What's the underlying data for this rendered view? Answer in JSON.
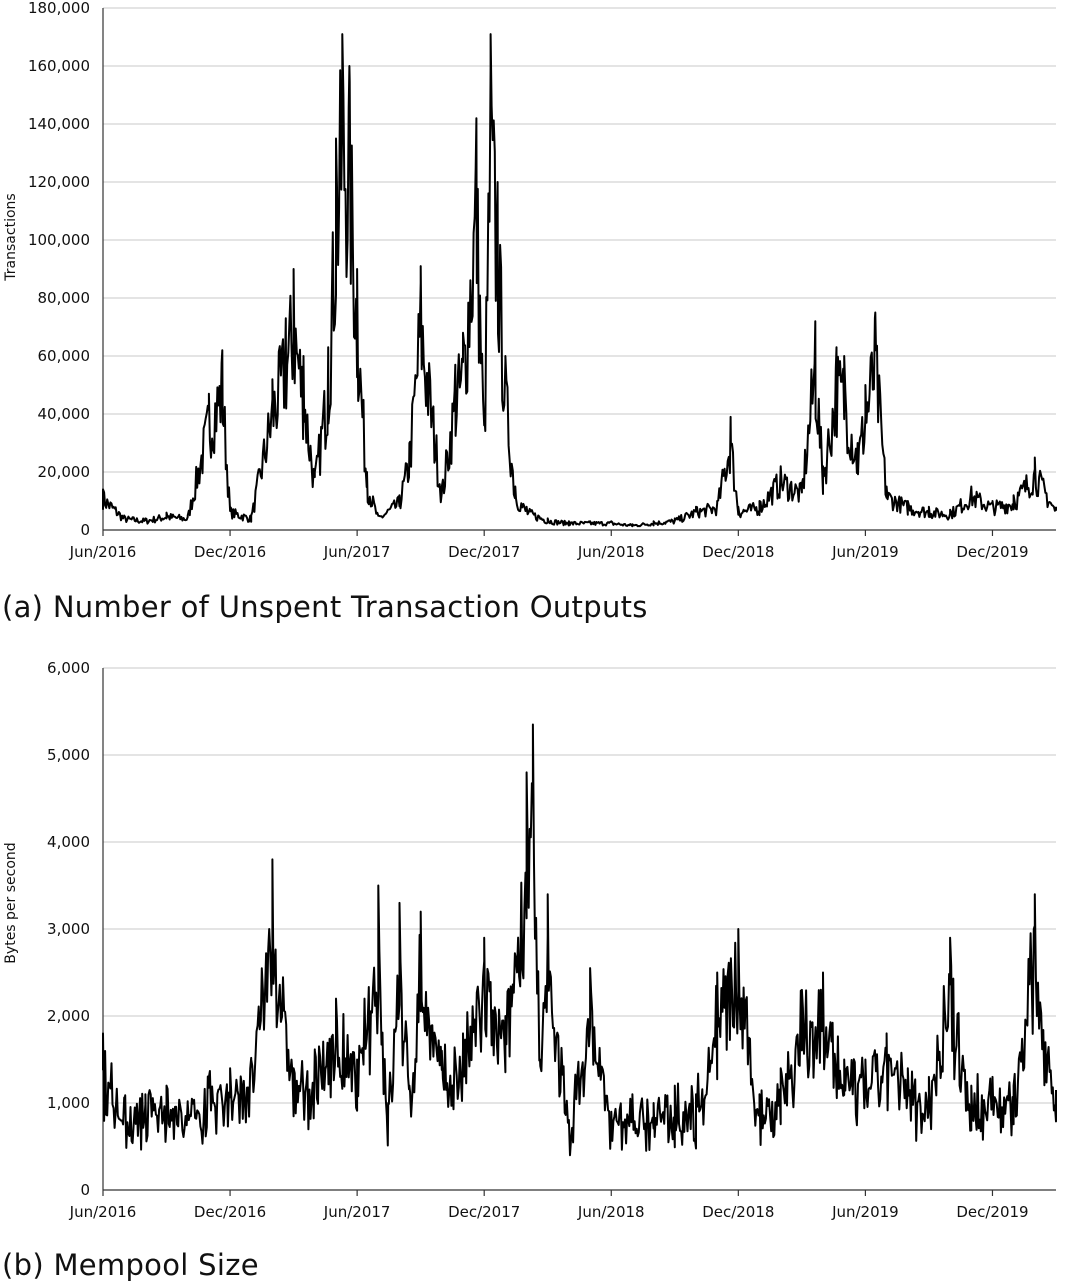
{
  "chart_data": [
    {
      "type": "line",
      "caption": "(a) Number of Unspent Transaction Outputs",
      "ylabel": "Transactions",
      "ylim": [
        0,
        180000
      ],
      "yticks": [
        0,
        20000,
        40000,
        60000,
        80000,
        100000,
        120000,
        140000,
        160000,
        180000
      ],
      "ytick_labels": [
        "0",
        "20,000",
        "40,000",
        "60,000",
        "80,000",
        "100,000",
        "120,000",
        "140,000",
        "160,000",
        "180,000"
      ],
      "xlim": [
        "2016-06",
        "2020-03"
      ],
      "xticks": [
        "2016-06",
        "2016-12",
        "2017-06",
        "2017-12",
        "2018-06",
        "2018-12",
        "2019-06",
        "2019-12"
      ],
      "xtick_labels": [
        "Jun/2016",
        "Dec/2016",
        "Jun/2017",
        "Dec/2017",
        "Jun/2018",
        "Dec/2018",
        "Jun/2019",
        "Dec/2019"
      ],
      "grid": true,
      "series": [
        {
          "x": [
            "2016-06",
            "2016-07",
            "2016-08",
            "2016-09",
            "2016-10",
            "2016-11",
            "2016-11-20",
            "2016-12",
            "2017-01",
            "2017-02",
            "2017-02-20",
            "2017-03",
            "2017-03-15",
            "2017-04",
            "2017-04-20",
            "2017-05",
            "2017-05-10",
            "2017-05-20",
            "2017-06",
            "2017-06-15",
            "2017-07",
            "2017-08",
            "2017-08-15",
            "2017-09",
            "2017-10",
            "2017-10-20",
            "2017-11",
            "2017-11-20",
            "2017-12",
            "2017-12-10",
            "2017-12-20",
            "2018-01",
            "2018-01-15",
            "2018-02",
            "2018-03",
            "2018-04",
            "2018-05",
            "2018-06",
            "2018-07",
            "2018-08",
            "2018-09",
            "2018-10",
            "2018-11",
            "2018-11-20",
            "2018-12",
            "2019-01",
            "2019-02",
            "2019-03",
            "2019-03-20",
            "2019-04",
            "2019-04-20",
            "2019-05",
            "2019-05-20",
            "2019-06",
            "2019-06-15",
            "2019-07",
            "2019-08",
            "2019-09",
            "2019-10",
            "2019-11",
            "2019-12",
            "2020-01",
            "2020-02",
            "2020-03"
          ],
          "y": [
            14000,
            5000,
            4000,
            6000,
            5000,
            47000,
            62000,
            8000,
            5000,
            52000,
            73000,
            90000,
            60000,
            20000,
            63000,
            135000,
            171000,
            160000,
            90000,
            20000,
            5000,
            12000,
            30000,
            91000,
            15000,
            57000,
            68000,
            142000,
            40000,
            171000,
            120000,
            60000,
            15000,
            8000,
            4000,
            3000,
            3000,
            3000,
            2000,
            3000,
            4000,
            8000,
            10000,
            39000,
            8000,
            10000,
            22000,
            16000,
            72000,
            22000,
            63000,
            60000,
            30000,
            50000,
            75000,
            15000,
            10000,
            8000,
            7000,
            15000,
            10000,
            12000,
            25000,
            8000
          ]
        }
      ]
    },
    {
      "type": "line",
      "caption": "(b) Mempool Size",
      "ylabel": "Bytes per second",
      "ylim": [
        0,
        6000
      ],
      "yticks": [
        0,
        1000,
        2000,
        3000,
        4000,
        5000,
        6000
      ],
      "ytick_labels": [
        "0",
        "1,000",
        "2,000",
        "3,000",
        "4,000",
        "5,000",
        "6,000"
      ],
      "xlim": [
        "2016-06",
        "2020-03"
      ],
      "xticks": [
        "2016-06",
        "2016-12",
        "2017-06",
        "2017-12",
        "2018-06",
        "2018-12",
        "2019-06",
        "2019-12"
      ],
      "xtick_labels": [
        "Jun/2016",
        "Dec/2016",
        "Jun/2017",
        "Dec/2017",
        "Jun/2018",
        "Dec/2018",
        "Jun/2019",
        "Dec/2019"
      ],
      "grid": true,
      "series": [
        {
          "x": [
            "2016-06",
            "2016-07",
            "2016-08",
            "2016-09",
            "2016-10",
            "2016-11",
            "2016-12",
            "2017-01",
            "2017-02",
            "2017-03",
            "2017-04",
            "2017-05",
            "2017-06",
            "2017-07",
            "2017-07-15",
            "2017-08",
            "2017-08-15",
            "2017-09",
            "2017-10",
            "2017-11",
            "2017-12",
            "2018-01",
            "2018-02",
            "2018-02-10",
            "2018-02-20",
            "2018-03",
            "2018-04",
            "2018-05",
            "2018-06",
            "2018-07",
            "2018-08",
            "2018-09",
            "2018-10",
            "2018-11",
            "2018-12",
            "2019-01",
            "2019-02",
            "2019-03",
            "2019-04",
            "2019-05",
            "2019-06",
            "2019-07",
            "2019-08",
            "2019-09",
            "2019-10",
            "2019-11",
            "2019-12",
            "2020-01",
            "2020-02",
            "2020-03"
          ],
          "y": [
            1800,
            1000,
            1100,
            1200,
            1000,
            1300,
            1400,
            1500,
            3800,
            1400,
            1600,
            2200,
            1500,
            3500,
            1000,
            3300,
            1200,
            3200,
            1600,
            1800,
            2900,
            2000,
            4800,
            5350,
            1500,
            3400,
            800,
            2550,
            900,
            1100,
            1000,
            1200,
            1100,
            2500,
            3000,
            1100,
            1400,
            2300,
            2500,
            1500,
            1500,
            1800,
            1400,
            1300,
            2900,
            1200,
            1300,
            1200,
            3400,
            1150
          ]
        }
      ]
    }
  ]
}
